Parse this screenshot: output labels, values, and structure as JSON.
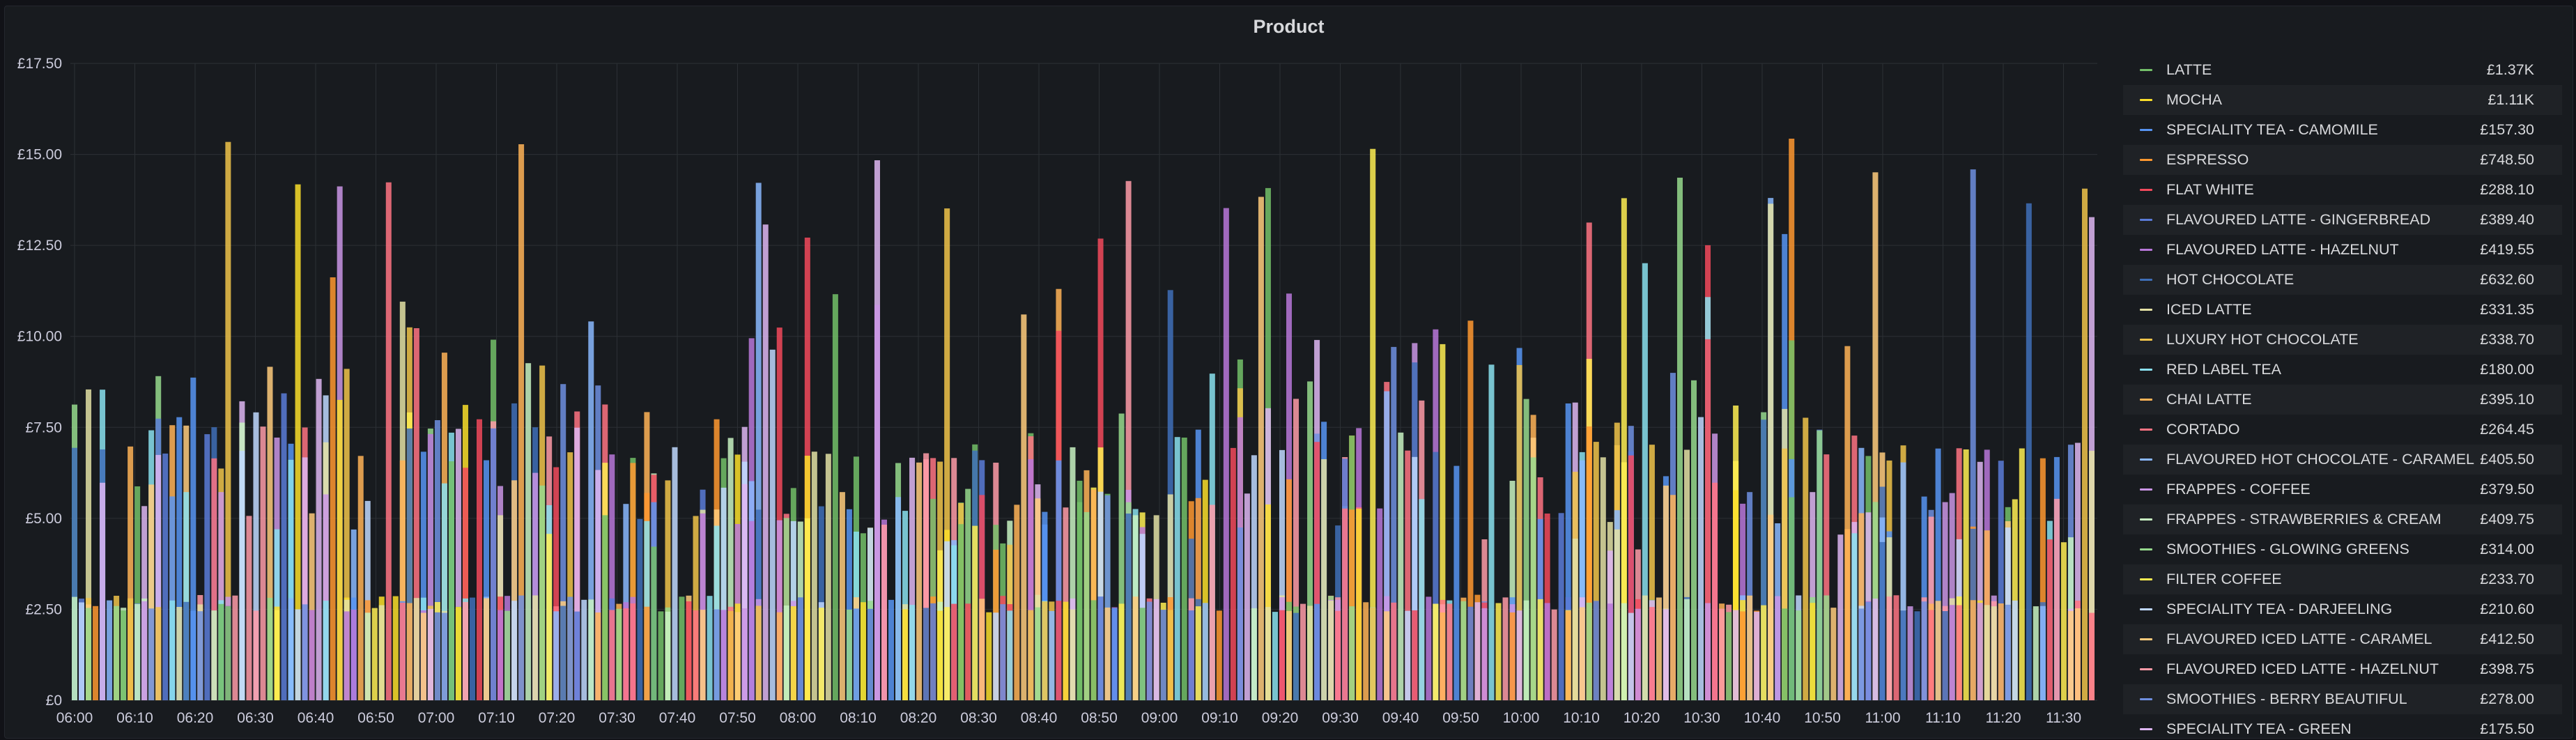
{
  "panel": {
    "title": "Product"
  },
  "chart_data": {
    "type": "bar",
    "title": "Product",
    "xlabel": "",
    "ylabel": "",
    "x_range": [
      "06:00",
      "11:35"
    ],
    "x_ticks": [
      "06:00",
      "06:10",
      "06:20",
      "06:30",
      "06:40",
      "06:50",
      "07:00",
      "07:10",
      "07:20",
      "07:30",
      "07:40",
      "07:50",
      "08:00",
      "08:10",
      "08:20",
      "08:30",
      "08:40",
      "08:50",
      "09:00",
      "09:10",
      "09:20",
      "09:30",
      "09:40",
      "09:50",
      "10:00",
      "10:10",
      "10:20",
      "10:30",
      "10:40",
      "10:50",
      "11:00",
      "11:10",
      "11:20",
      "11:30"
    ],
    "ylim": [
      0,
      17.5
    ],
    "y_ticks": [
      "£0",
      "£2.50",
      "£5.00",
      "£7.50",
      "£10.00",
      "£12.50",
      "£15.00",
      "£17.50"
    ],
    "grid": true,
    "legend_position": "right",
    "series": [
      {
        "name": "LATTE",
        "color": "#73bf69",
        "total": "£1.37K"
      },
      {
        "name": "MOCHA",
        "color": "#fade2a",
        "total": "£1.11K"
      },
      {
        "name": "SPECIALITY TEA - CAMOMILE",
        "color": "#5794f2",
        "total": "£157.30"
      },
      {
        "name": "ESPRESSO",
        "color": "#ff9830",
        "total": "£748.50"
      },
      {
        "name": "FLAT WHITE",
        "color": "#f2495c",
        "total": "£288.10"
      },
      {
        "name": "FLAVOURED LATTE - GINGERBREAD",
        "color": "#5a7bd8",
        "total": "£389.40"
      },
      {
        "name": "FLAVOURED LATTE - HAZELNUT",
        "color": "#b877d9",
        "total": "£419.55"
      },
      {
        "name": "HOT CHOCOLATE",
        "color": "#3f6fb8",
        "total": "£632.60"
      },
      {
        "name": "ICED LATTE",
        "color": "#e3e1a5",
        "total": "£331.35"
      },
      {
        "name": "LUXURY HOT CHOCOLATE",
        "color": "#f0c34a",
        "total": "£338.70"
      },
      {
        "name": "RED LABEL TEA",
        "color": "#8ae0ef",
        "total": "£180.00"
      },
      {
        "name": "CHAI LATTE",
        "color": "#ffb357",
        "total": "£395.10"
      },
      {
        "name": "CORTADO",
        "color": "#ff7383",
        "total": "£264.45"
      },
      {
        "name": "FLAVOURED HOT CHOCOLATE - CARAMEL",
        "color": "#8ab8ff",
        "total": "£405.50"
      },
      {
        "name": "FRAPPES - COFFEE",
        "color": "#ca95e5",
        "total": "£379.50"
      },
      {
        "name": "FRAPPES - STRAWBERRIES & CREAM",
        "color": "#c8f2c2",
        "total": "£409.75"
      },
      {
        "name": "SMOOTHIES - GLOWING GREENS",
        "color": "#96d98d",
        "total": "£314.00"
      },
      {
        "name": "FILTER COFFEE",
        "color": "#ffee52",
        "total": "£233.70"
      },
      {
        "name": "SPECIALITY TEA - DARJEELING",
        "color": "#c0d8ff",
        "total": "£210.60"
      },
      {
        "name": "FLAVOURED ICED LATTE - CARAMEL",
        "color": "#ffcb7d",
        "total": "£412.50"
      },
      {
        "name": "FLAVOURED ICED LATTE - HAZELNUT",
        "color": "#ff9ba8",
        "total": "£398.75"
      },
      {
        "name": "SMOOTHIES - BERRY BEAUTIFUL",
        "color": "#6f8fe0",
        "total": "£278.00"
      },
      {
        "name": "SPECIALITY TEA - GREEN",
        "color": "#deb6f2",
        "total": "£175.50"
      }
    ]
  }
}
